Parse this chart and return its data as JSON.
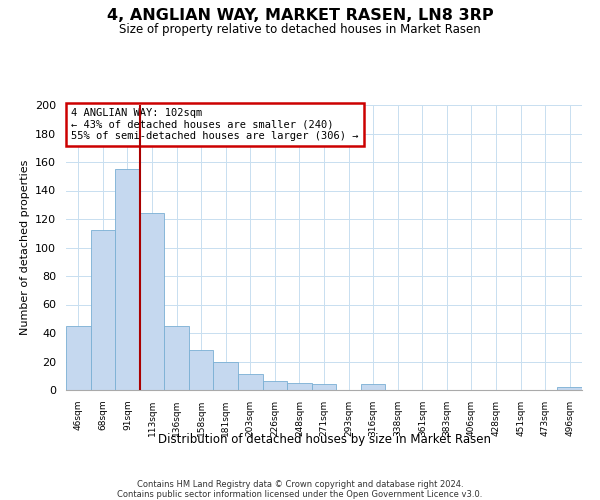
{
  "title": "4, ANGLIAN WAY, MARKET RASEN, LN8 3RP",
  "subtitle": "Size of property relative to detached houses in Market Rasen",
  "xlabel": "Distribution of detached houses by size in Market Rasen",
  "ylabel": "Number of detached properties",
  "bar_labels": [
    "46sqm",
    "68sqm",
    "91sqm",
    "113sqm",
    "136sqm",
    "158sqm",
    "181sqm",
    "203sqm",
    "226sqm",
    "248sqm",
    "271sqm",
    "293sqm",
    "316sqm",
    "338sqm",
    "361sqm",
    "383sqm",
    "406sqm",
    "428sqm",
    "451sqm",
    "473sqm",
    "496sqm"
  ],
  "bar_values": [
    45,
    112,
    155,
    124,
    45,
    28,
    20,
    11,
    6,
    5,
    4,
    0,
    4,
    0,
    0,
    0,
    0,
    0,
    0,
    0,
    2
  ],
  "bar_color": "#c5d8ef",
  "bar_edge_color": "#7aafd4",
  "vline_color": "#aa0000",
  "vline_x_index": 2.5,
  "ylim": [
    0,
    200
  ],
  "yticks": [
    0,
    20,
    40,
    60,
    80,
    100,
    120,
    140,
    160,
    180,
    200
  ],
  "annotation_title": "4 ANGLIAN WAY: 102sqm",
  "annotation_line1": "← 43% of detached houses are smaller (240)",
  "annotation_line2": "55% of semi-detached houses are larger (306) →",
  "annotation_box_color": "#ffffff",
  "annotation_box_edge": "#cc0000",
  "footer_line1": "Contains HM Land Registry data © Crown copyright and database right 2024.",
  "footer_line2": "Contains public sector information licensed under the Open Government Licence v3.0.",
  "background_color": "#ffffff",
  "grid_color": "#c8dff0"
}
